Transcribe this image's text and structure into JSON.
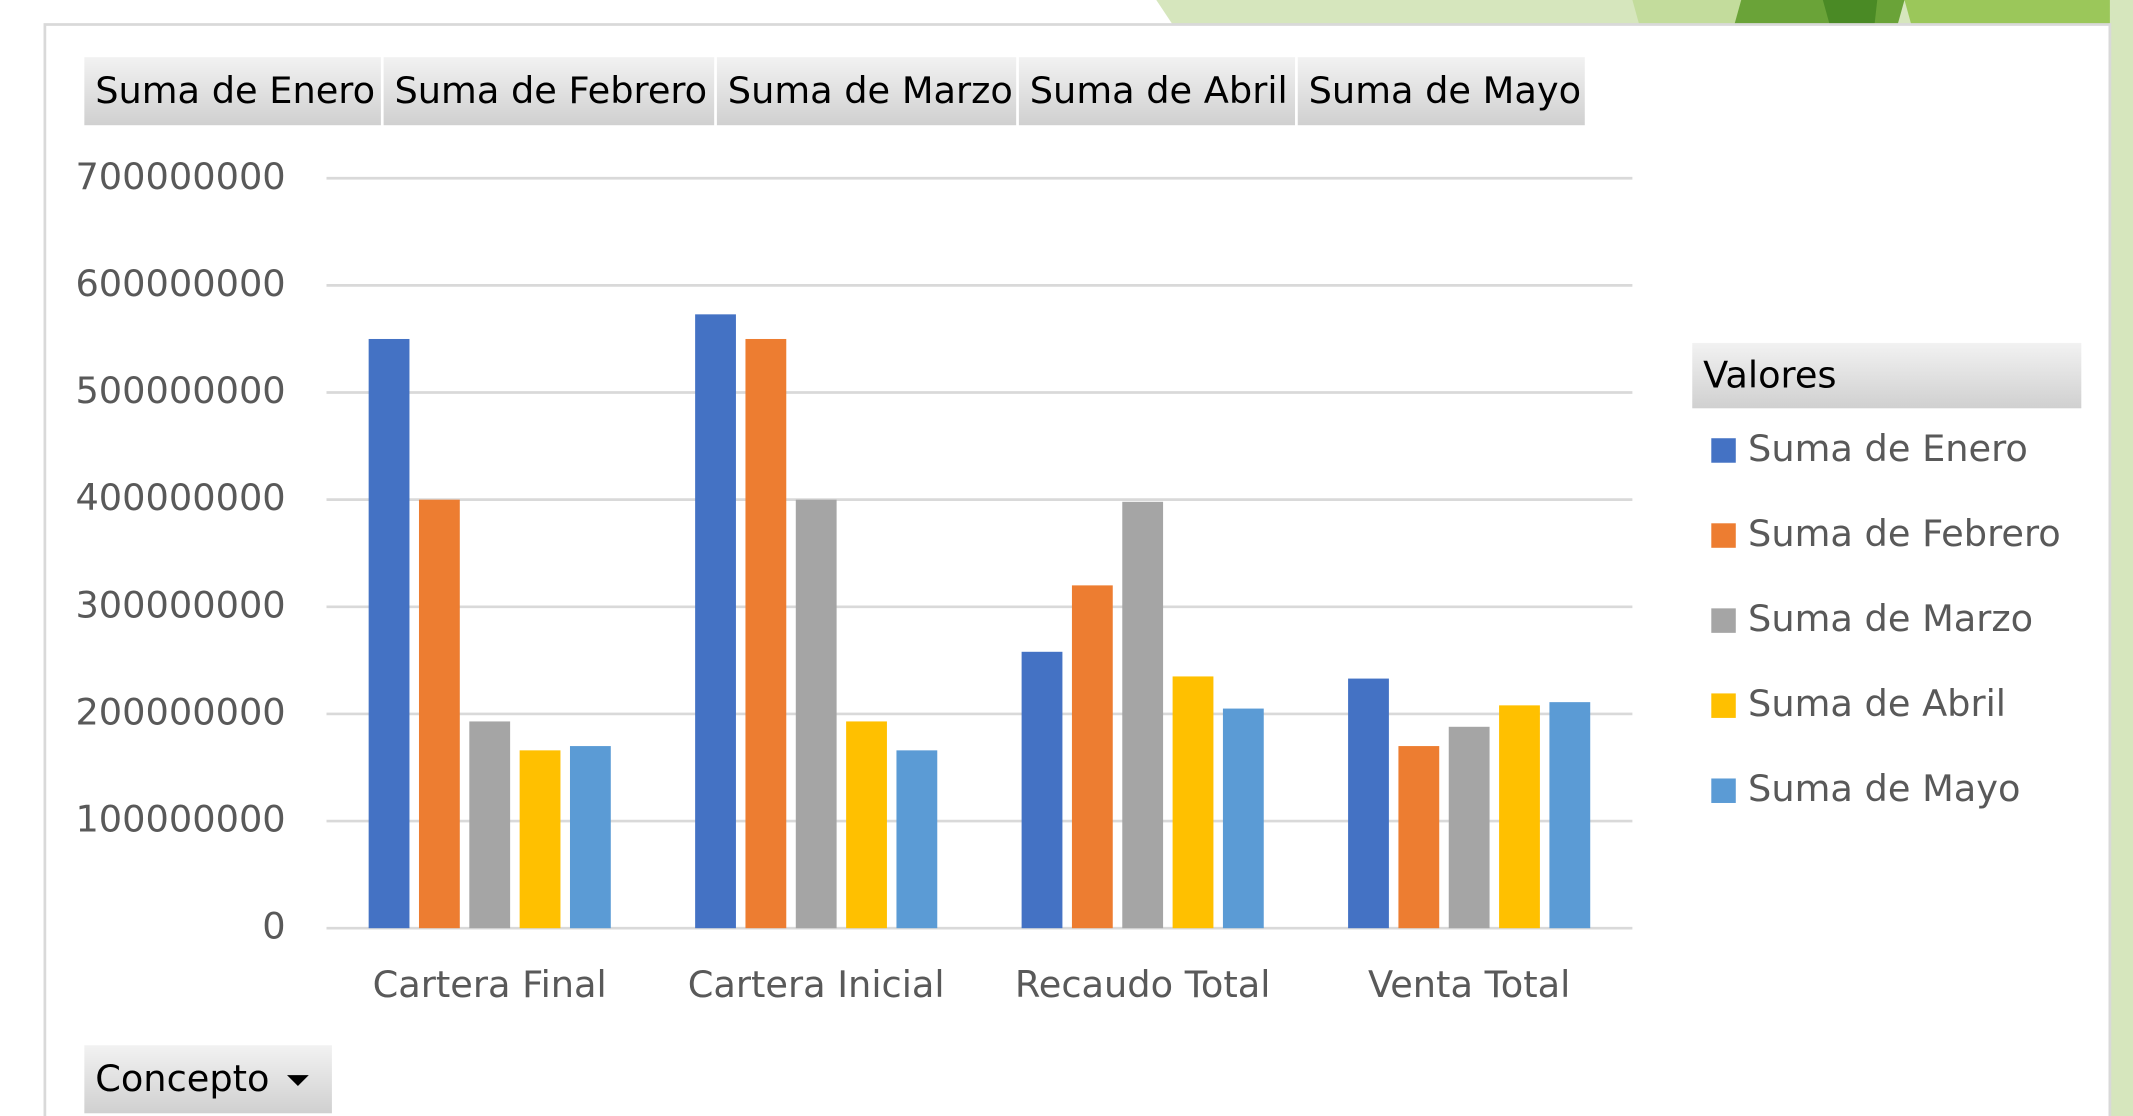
{
  "chart_data": {
    "type": "bar",
    "categories": [
      "Cartera Final",
      "Cartera Inicial",
      "Recaudo Total",
      "Venta Total"
    ],
    "series": [
      {
        "name": "Suma de Enero",
        "color": "#4472c4",
        "values": [
          550000000,
          573000000,
          258000000,
          233000000
        ]
      },
      {
        "name": "Suma de Febrero",
        "color": "#ed7d31",
        "values": [
          400000000,
          550000000,
          320000000,
          170000000
        ]
      },
      {
        "name": "Suma de Marzo",
        "color": "#a5a5a5",
        "values": [
          193000000,
          400000000,
          398000000,
          188000000
        ]
      },
      {
        "name": "Suma de Abril",
        "color": "#ffc000",
        "values": [
          166000000,
          193000000,
          235000000,
          208000000
        ]
      },
      {
        "name": "Suma de Mayo",
        "color": "#5b9bd5",
        "values": [
          170000000,
          166000000,
          205000000,
          211000000
        ]
      }
    ],
    "ylim": [
      0,
      700000000
    ],
    "yticks": [
      0,
      100000000,
      200000000,
      300000000,
      400000000,
      500000000,
      600000000,
      700000000
    ],
    "grid": true,
    "legend_title": "Valores",
    "legend": "right",
    "row_field": "Concepto"
  }
}
